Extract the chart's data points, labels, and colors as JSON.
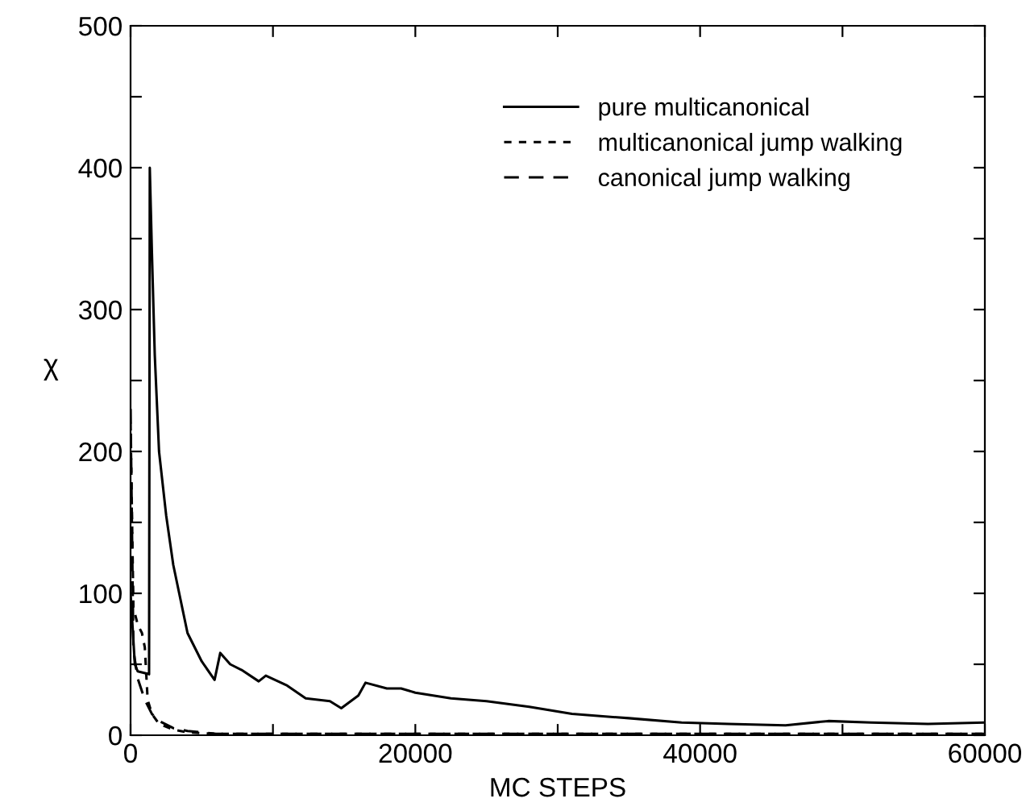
{
  "chart_data": {
    "type": "line",
    "xlabel": "MC STEPS",
    "ylabel": "χ",
    "xlim": [
      0,
      60000
    ],
    "ylim": [
      0,
      500
    ],
    "xticks": [
      0,
      {
        "value": 10000,
        "label": null
      },
      20000,
      {
        "value": 30000,
        "label": null
      },
      40000,
      {
        "value": 50000,
        "label": null
      },
      60000
    ],
    "yticks": [
      0,
      {
        "value": 50,
        "label": null
      },
      100,
      {
        "value": 150,
        "label": null
      },
      200,
      {
        "value": 250,
        "label": null
      },
      300,
      {
        "value": 350,
        "label": null
      },
      400,
      {
        "value": 450,
        "label": null
      },
      500
    ],
    "grid": false,
    "legend": "top right",
    "marker": "none",
    "series": [
      {
        "name": "pure multicanonical",
        "color": "#000000",
        "line_style": "solid",
        "x": [
          0,
          300,
          500,
          1300,
          1350,
          1500,
          1700,
          2000,
          2500,
          3000,
          4000,
          5000,
          5900,
          6300,
          7000,
          7800,
          9000,
          9500,
          11000,
          12300,
          14000,
          14800,
          16000,
          16500,
          18000,
          19000,
          20000,
          22500,
          25000,
          28000,
          31000,
          35000,
          38700,
          42000,
          46000,
          49000,
          52000,
          56000,
          60000
        ],
        "values": [
          100,
          50,
          45,
          43,
          400,
          340,
          268,
          200,
          155,
          120,
          72,
          52,
          39,
          58,
          50,
          46,
          38,
          42,
          35,
          26,
          24,
          19,
          28,
          37,
          33,
          33,
          30,
          26,
          24,
          20,
          15,
          12,
          9,
          8,
          7,
          10,
          9,
          8,
          9
        ]
      },
      {
        "name": "multicanonical jump walking",
        "color": "#000000",
        "line_style": "dotted",
        "x": [
          0,
          200,
          500,
          800,
          1000,
          1200,
          1500,
          2000,
          3000,
          4000,
          6000,
          10000,
          20000,
          40000,
          60000
        ],
        "values": [
          220,
          90,
          78,
          72,
          62,
          25,
          15,
          8,
          4,
          2,
          1,
          1,
          1,
          1,
          1
        ]
      },
      {
        "name": "canonical jump walking",
        "color": "#000000",
        "line_style": "dashed",
        "x": [
          0,
          200,
          500,
          1000,
          1500,
          2000,
          3000,
          4000,
          6000,
          10000,
          20000,
          40000,
          60000
        ],
        "values": [
          230,
          60,
          40,
          25,
          15,
          10,
          5,
          3,
          1,
          1,
          1,
          1,
          1
        ]
      }
    ]
  }
}
